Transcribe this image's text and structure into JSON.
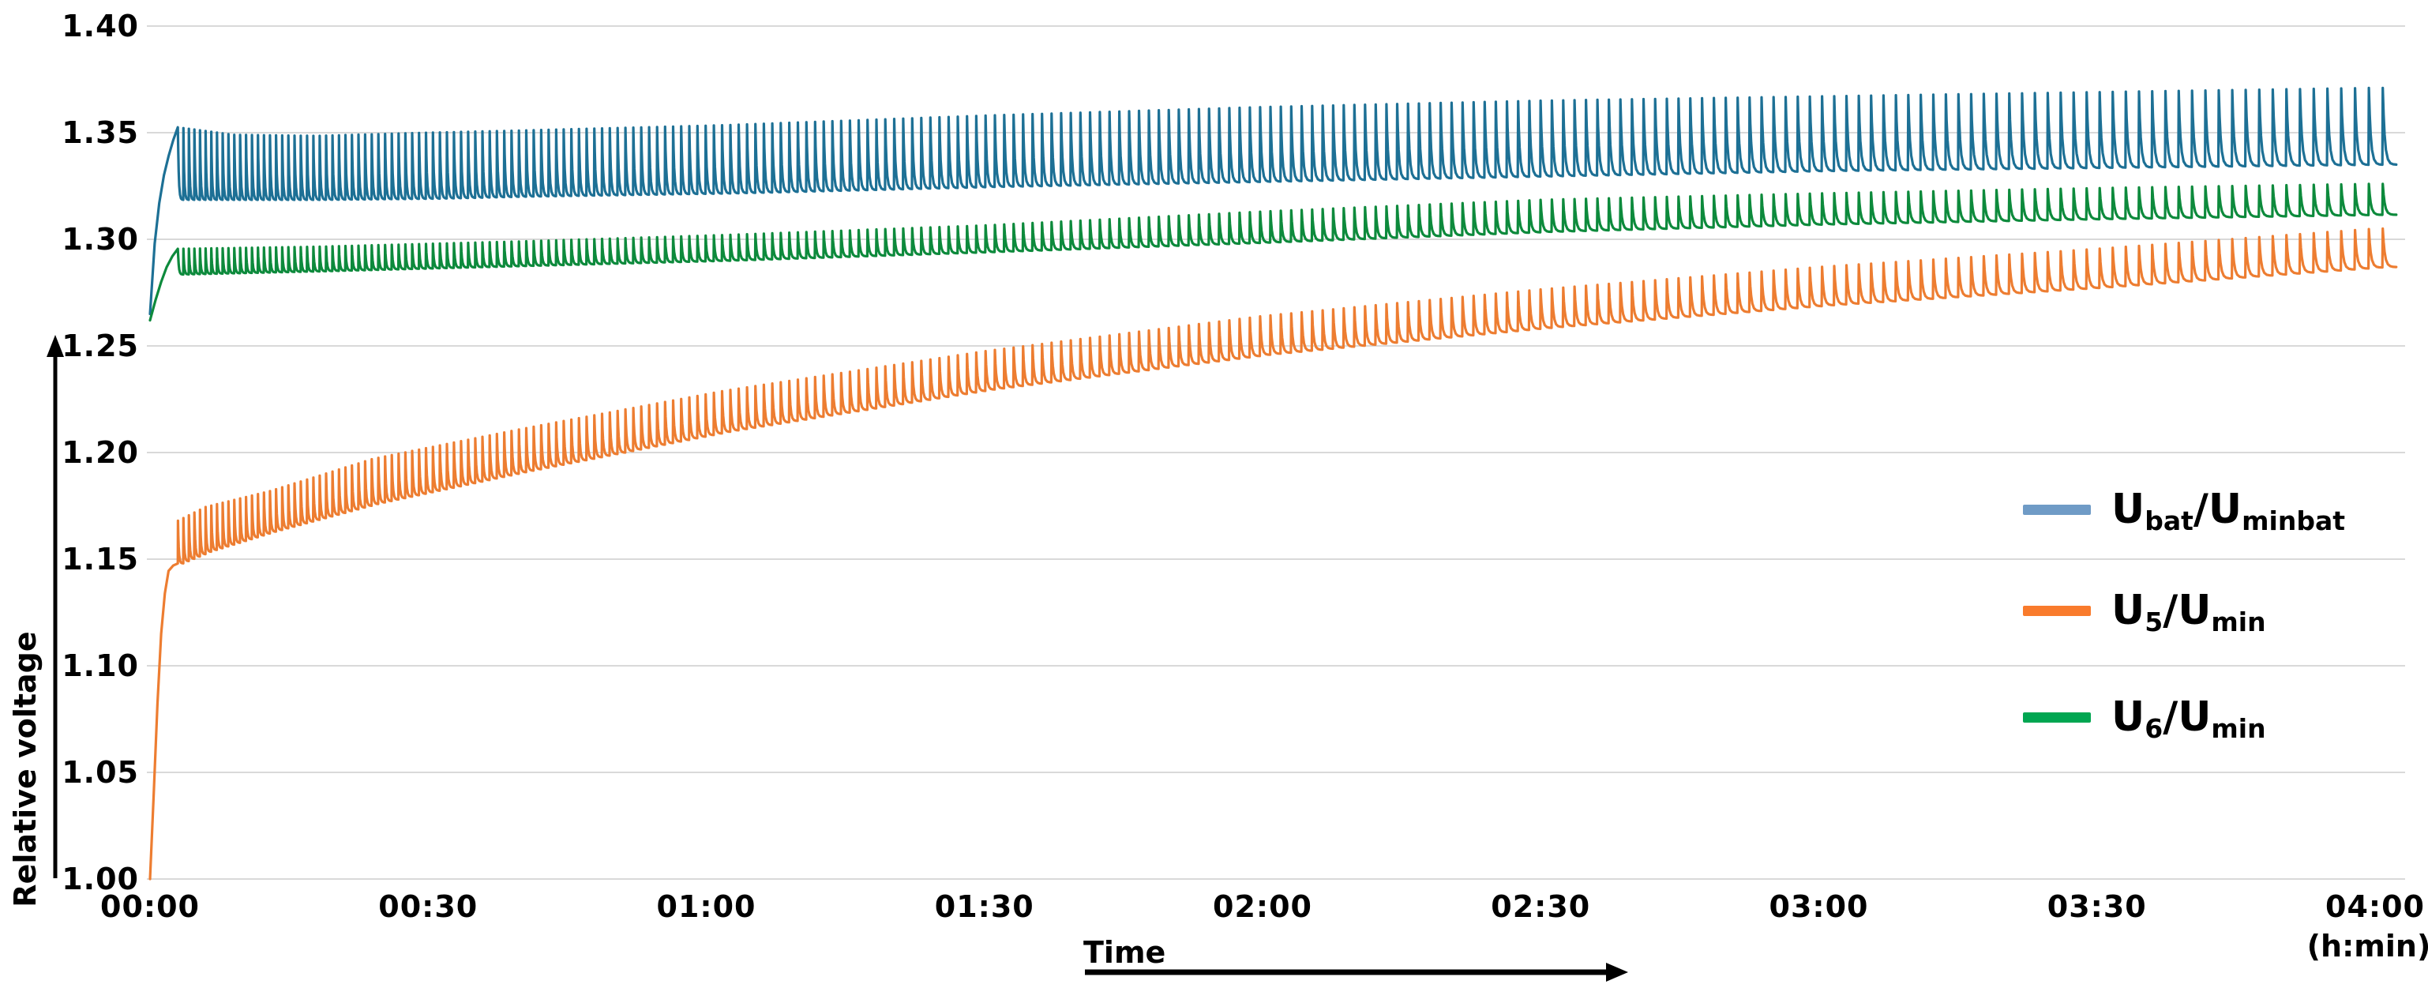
{
  "chart_data": {
    "type": "line",
    "title": "",
    "xlabel": "Time",
    "x_unit_label": "(h:min)",
    "ylabel": "Relative voltage",
    "xlim_minutes": [
      0,
      240
    ],
    "ylim": [
      1.0,
      1.4
    ],
    "grid": "horizontal-only",
    "grid_color": "#d9d9d9",
    "background_color": "#ffffff",
    "legend_position": "right-middle",
    "x_ticks": [
      {
        "t": 0,
        "label": "00:00"
      },
      {
        "t": 30,
        "label": "00:30"
      },
      {
        "t": 60,
        "label": "01:00"
      },
      {
        "t": 90,
        "label": "01:30"
      },
      {
        "t": 120,
        "label": "02:00"
      },
      {
        "t": 150,
        "label": "02:30"
      },
      {
        "t": 180,
        "label": "03:00"
      },
      {
        "t": 210,
        "label": "03:30"
      },
      {
        "t": 240,
        "label": "04:00"
      }
    ],
    "y_ticks": [
      {
        "v": 1.4,
        "label": "1.40"
      },
      {
        "v": 1.35,
        "label": "1.35"
      },
      {
        "v": 1.3,
        "label": "1.30"
      },
      {
        "v": 1.25,
        "label": "1.25"
      },
      {
        "v": 1.2,
        "label": "1.20"
      },
      {
        "v": 1.15,
        "label": "1.15"
      },
      {
        "v": 1.1,
        "label": "1.10"
      },
      {
        "v": 1.05,
        "label": "1.05"
      },
      {
        "v": 1.0,
        "label": "1.00"
      }
    ],
    "pulses": {
      "description": "synchronized charge pulses: sharp rise to peak envelope then exponential decay back to baseline envelope",
      "start_min": 3.0,
      "end_min": 242,
      "period_model": {
        "p0_min": 0.55,
        "p1_min": 0.95,
        "exponent": 0.75
      },
      "decay_tau_fraction": 0.14
    },
    "series": [
      {
        "name": "Ubat/Uminbat",
        "legend_parts": [
          {
            "t": "U"
          },
          {
            "t": "bat",
            "sub": true
          },
          {
            "t": "/U"
          },
          {
            "t": "minbat",
            "sub": true
          }
        ],
        "line_color": "#1d7095",
        "legend_color": "#6f9bc6",
        "legend_row_y": 645,
        "rise_ends_at_peak": true,
        "initial_rise_points": [
          [
            0,
            1.265
          ],
          [
            0.5,
            1.298
          ],
          [
            1,
            1.317
          ],
          [
            1.5,
            1.33
          ],
          [
            2,
            1.339
          ],
          [
            2.5,
            1.3465
          ],
          [
            3,
            1.3525
          ]
        ],
        "envelope_minutes": [
          3,
          9,
          18,
          30,
          40,
          62,
          90,
          120,
          150,
          180,
          210,
          240
        ],
        "baseline_values": [
          1.3185,
          1.3185,
          1.3185,
          1.319,
          1.32,
          1.3215,
          1.3245,
          1.327,
          1.3295,
          1.332,
          1.3335,
          1.335
        ],
        "peak_values": [
          1.3525,
          1.349,
          1.3485,
          1.35,
          1.351,
          1.3535,
          1.358,
          1.362,
          1.365,
          1.367,
          1.369,
          1.371
        ]
      },
      {
        "name": "U5/Umin",
        "legend_parts": [
          {
            "t": "U"
          },
          {
            "t": "5",
            "sub": true
          },
          {
            "t": "/U"
          },
          {
            "t": "min",
            "sub": true
          }
        ],
        "line_color": "#ed7d31",
        "legend_color": "#f97b2c",
        "legend_row_y": 773,
        "rise_ends_at_peak": false,
        "initial_rise_points": [
          [
            0,
            1.0
          ],
          [
            0.4,
            1.04
          ],
          [
            0.8,
            1.082
          ],
          [
            1.2,
            1.115
          ],
          [
            1.6,
            1.134
          ],
          [
            2.0,
            1.1445
          ],
          [
            2.5,
            1.147
          ],
          [
            3,
            1.148
          ]
        ],
        "envelope_minutes": [
          3,
          6,
          13,
          24,
          40,
          62,
          90,
          120,
          150,
          180,
          210,
          240
        ],
        "baseline_values": [
          1.148,
          1.1535,
          1.163,
          1.176,
          1.191,
          1.21,
          1.2295,
          1.246,
          1.2585,
          1.269,
          1.2775,
          1.287
        ],
        "peak_values": [
          1.168,
          1.1745,
          1.182,
          1.197,
          1.211,
          1.229,
          1.2475,
          1.264,
          1.2765,
          1.287,
          1.2955,
          1.305
        ]
      },
      {
        "name": "U6/Umin",
        "legend_parts": [
          {
            "t": "U"
          },
          {
            "t": "6",
            "sub": true
          },
          {
            "t": "/U"
          },
          {
            "t": "min",
            "sub": true
          }
        ],
        "line_color": "#0d8a3c",
        "legend_color": "#00a651",
        "legend_row_y": 908,
        "rise_ends_at_peak": true,
        "initial_rise_points": [
          [
            0,
            1.262
          ],
          [
            0.6,
            1.2715
          ],
          [
            1.2,
            1.28
          ],
          [
            1.8,
            1.287
          ],
          [
            2.4,
            1.292
          ],
          [
            3,
            1.2955
          ]
        ],
        "envelope_minutes": [
          3,
          18,
          40,
          62,
          90,
          120,
          150,
          180,
          210,
          240
        ],
        "baseline_values": [
          1.2835,
          1.285,
          1.2875,
          1.29,
          1.294,
          1.2985,
          1.3035,
          1.307,
          1.3095,
          1.3115
        ],
        "peak_values": [
          1.2955,
          1.2965,
          1.299,
          1.302,
          1.3065,
          1.313,
          1.3185,
          1.3215,
          1.324,
          1.326
        ]
      }
    ]
  },
  "annotations": {
    "y_axis_title": "Relative voltage",
    "x_axis_title": "Time",
    "x_axis_unit": "(h:min)"
  }
}
